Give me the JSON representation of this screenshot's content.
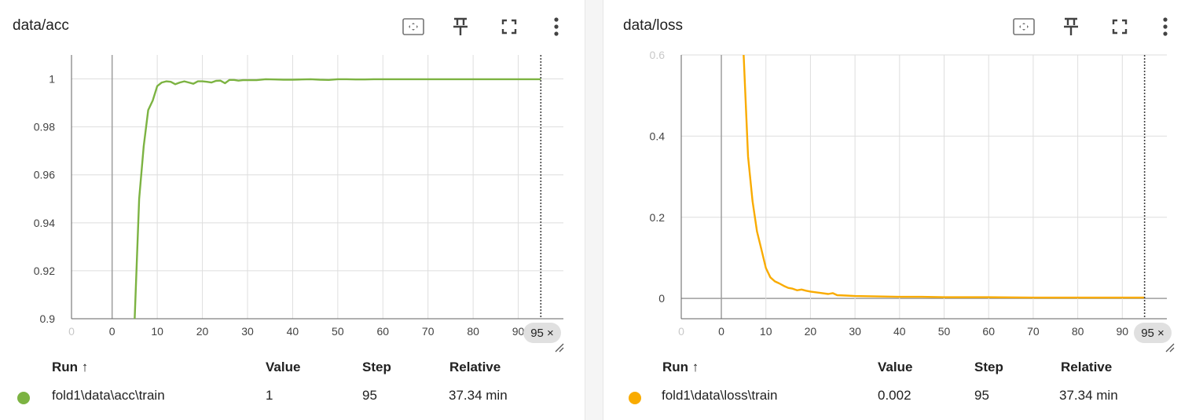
{
  "panels": [
    {
      "title": "data/acc",
      "color": "#7cb342",
      "table": {
        "headers": {
          "run": "Run ↑",
          "value": "Value",
          "step": "Step",
          "relative": "Relative"
        },
        "row": {
          "run": "fold1\\data\\acc\\train",
          "value": "1",
          "step": "95",
          "relative": "37.34 min"
        }
      },
      "step_chip": "95 ×",
      "chart_data": {
        "type": "line",
        "x_ticks": [
          "0",
          "0",
          "10",
          "20",
          "30",
          "40",
          "50",
          "60",
          "70",
          "80",
          "90"
        ],
        "y_ticks": [
          "0.9",
          "0.92",
          "0.94",
          "0.96",
          "0.98",
          "1"
        ],
        "xlim": [
          -9,
          100
        ],
        "ylim": [
          0.9,
          1.01
        ],
        "vline_step": 95,
        "series": [
          {
            "x": [
              5,
              6,
              7,
              8,
              9,
              10,
              11,
              12,
              13,
              14,
              15,
              16,
              17,
              18,
              19,
              20,
              21,
              22,
              23,
              24,
              25,
              26,
              27,
              28,
              29,
              30,
              32,
              34,
              36,
              38,
              40,
              42,
              44,
              46,
              48,
              50,
              52,
              54,
              56,
              58,
              60,
              65,
              70,
              75,
              80,
              85,
              90,
              95
            ],
            "y": [
              0.9,
              0.95,
              0.972,
              0.987,
              0.991,
              0.997,
              0.9985,
              0.999,
              0.9988,
              0.9978,
              0.9985,
              0.999,
              0.9985,
              0.998,
              0.999,
              0.999,
              0.9988,
              0.9985,
              0.9992,
              0.9993,
              0.9982,
              0.9996,
              0.9996,
              0.9993,
              0.9995,
              0.9995,
              0.9995,
              0.9999,
              0.9998,
              0.9997,
              0.9997,
              0.9998,
              0.9999,
              0.9997,
              0.9996,
              0.9999,
              0.9999,
              0.9998,
              0.9998,
              0.9999,
              0.9999,
              0.9999,
              0.9999,
              0.9999,
              0.9999,
              0.9999,
              0.9999,
              0.9999
            ]
          }
        ]
      }
    },
    {
      "title": "data/loss",
      "color": "#f9ab00",
      "table": {
        "headers": {
          "run": "Run ↑",
          "value": "Value",
          "step": "Step",
          "relative": "Relative"
        },
        "row": {
          "run": "fold1\\data\\loss\\train",
          "value": "0.002",
          "step": "95",
          "relative": "37.34 min"
        }
      },
      "step_chip": "95 ×",
      "chart_data": {
        "type": "line",
        "x_ticks": [
          "0",
          "0",
          "10",
          "20",
          "30",
          "40",
          "50",
          "60",
          "70",
          "80",
          "90"
        ],
        "y_ticks": [
          "0",
          "0.2",
          "0.4",
          "0.6"
        ],
        "xlim": [
          -9,
          100
        ],
        "ylim": [
          -0.05,
          0.6
        ],
        "vline_step": 95,
        "series": [
          {
            "x": [
              5,
              6,
              7,
              8,
              9,
              10,
              11,
              12,
              13,
              14,
              15,
              16,
              17,
              18,
              19,
              20,
              22,
              24,
              25,
              26,
              28,
              30,
              35,
              40,
              45,
              50,
              60,
              70,
              80,
              90,
              95
            ],
            "y": [
              0.6,
              0.35,
              0.24,
              0.165,
              0.12,
              0.075,
              0.052,
              0.042,
              0.037,
              0.031,
              0.026,
              0.024,
              0.02,
              0.022,
              0.019,
              0.017,
              0.014,
              0.011,
              0.013,
              0.008,
              0.007,
              0.006,
              0.005,
              0.004,
              0.004,
              0.003,
              0.003,
              0.002,
              0.002,
              0.002,
              0.002
            ]
          }
        ]
      }
    }
  ]
}
